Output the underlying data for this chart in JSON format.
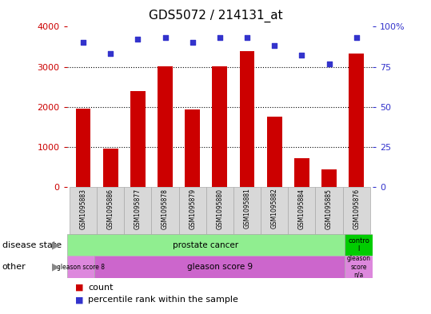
{
  "title": "GDS5072 / 214131_at",
  "samples": [
    "GSM1095883",
    "GSM1095886",
    "GSM1095877",
    "GSM1095878",
    "GSM1095879",
    "GSM1095880",
    "GSM1095881",
    "GSM1095882",
    "GSM1095884",
    "GSM1095885",
    "GSM1095876"
  ],
  "counts": [
    1950,
    950,
    2400,
    3020,
    1930,
    3020,
    3380,
    1760,
    720,
    430,
    3320
  ],
  "percentiles": [
    90,
    83,
    92,
    93,
    90,
    93,
    93,
    88,
    82,
    77,
    93
  ],
  "bar_color": "#cc0000",
  "dot_color": "#3333cc",
  "ylim_left": [
    0,
    4000
  ],
  "ylim_right": [
    0,
    100
  ],
  "yticks_left": [
    0,
    1000,
    2000,
    3000,
    4000
  ],
  "yticks_right": [
    0,
    25,
    50,
    75,
    100
  ],
  "ytick_labels_right": [
    "0",
    "25",
    "50",
    "75",
    "100%"
  ],
  "disease_state_green": "#90ee90",
  "disease_state_control": "#00cc00",
  "disease_state_labels": [
    "prostate cancer",
    "contro\nl"
  ],
  "other_magenta_light": "#dd88dd",
  "other_magenta_dark": "#cc66cc",
  "other_labels": [
    "gleason score 8",
    "gleason score 9",
    "gleason\nscore\nn/a"
  ],
  "tick_label_color_left": "#cc0000",
  "tick_label_color_right": "#3333cc",
  "row_label_disease": "disease state",
  "row_label_other": "other",
  "legend_count": "count",
  "legend_percentile": "percentile rank within the sample",
  "bar_color_legend": "#cc0000",
  "dot_color_legend": "#3333cc"
}
